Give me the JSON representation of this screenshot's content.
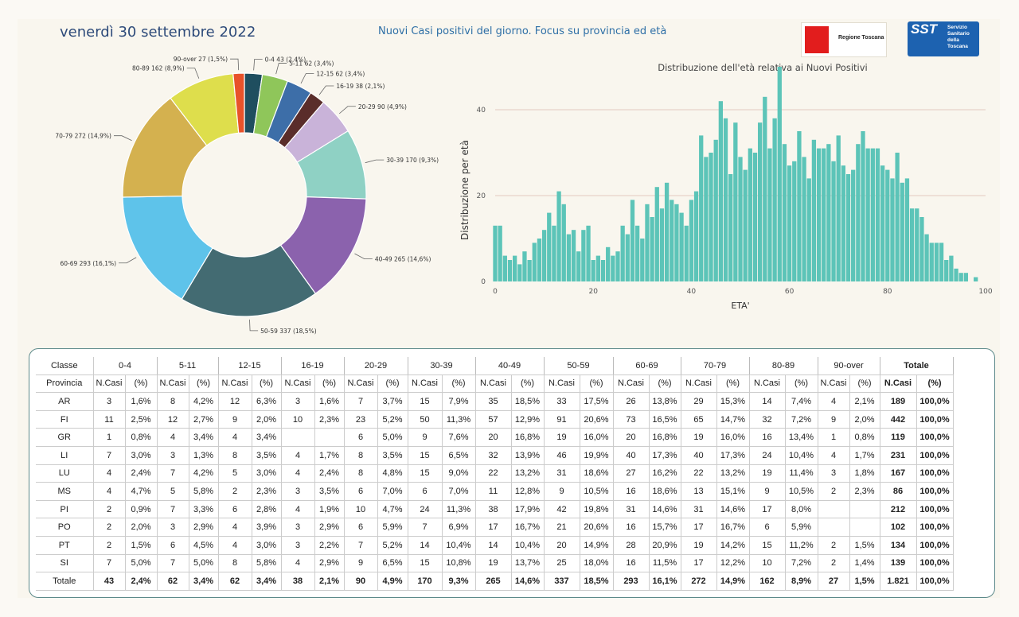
{
  "header": {
    "date": "venerdì 30 settembre 2022",
    "title": "Nuovi Casi positivi del giorno. Focus su provincia ed età",
    "logo_rt_text": "Regione Toscana",
    "logo_sst_big": "SST",
    "logo_sst_small": "Servizio\nSanitario\ndella\nToscana"
  },
  "colors": {
    "accent": "#2e6fa6",
    "hist_bar": "#5cc4b8",
    "grid": "#e4c9c0"
  },
  "chart_data": [
    {
      "type": "pie",
      "labels": [
        "0-4",
        "5-11",
        "12-15",
        "16-19",
        "20-29",
        "30-39",
        "40-49",
        "50-59",
        "60-69",
        "70-79",
        "80-89",
        "90-over"
      ],
      "values": [
        43,
        62,
        62,
        38,
        90,
        170,
        265,
        337,
        293,
        272,
        162,
        27
      ],
      "data_labels": [
        "0-4 43 (2,4%)",
        "5-11 62 (3,4%)",
        "12-15 62 (3,4%)",
        "16-19 38 (2,1%)",
        "20-29 90 (4,9%)",
        "30-39 170 (9,3%)",
        "40-49 265 (14,6%)",
        "50-59 337 (18,5%)",
        "60-69 293 (16,1%)",
        "70-79 272 (14,9%)",
        "80-89 162 (8,9%)",
        "90-over 27 (1,5%)"
      ],
      "colors": [
        "#1f4e5f",
        "#8fc65a",
        "#3d6ea8",
        "#5a2d2a",
        "#c9b3d9",
        "#8fd1c4",
        "#8b62ad",
        "#436b72",
        "#5ec3ea",
        "#d4b14f",
        "#dede4c",
        "#e8522a"
      ]
    },
    {
      "type": "bar",
      "title": "Distribuzione dell'età relativa ai Nuovi Positivi",
      "xlabel": "ETA'",
      "ylabel": "Distribuzione per età",
      "xlim": [
        0,
        100
      ],
      "ylim": [
        0,
        50
      ],
      "xticks": [
        0,
        20,
        40,
        60,
        80,
        100
      ],
      "yticks": [
        0,
        20,
        40
      ],
      "grid": "horizontal",
      "x": [
        0,
        1,
        2,
        3,
        4,
        5,
        6,
        7,
        8,
        9,
        10,
        11,
        12,
        13,
        14,
        15,
        16,
        17,
        18,
        19,
        20,
        21,
        22,
        23,
        24,
        25,
        26,
        27,
        28,
        29,
        30,
        31,
        32,
        33,
        34,
        35,
        36,
        37,
        38,
        39,
        40,
        41,
        42,
        43,
        44,
        45,
        46,
        47,
        48,
        49,
        50,
        51,
        52,
        53,
        54,
        55,
        56,
        57,
        58,
        59,
        60,
        61,
        62,
        63,
        64,
        65,
        66,
        67,
        68,
        69,
        70,
        71,
        72,
        73,
        74,
        75,
        76,
        77,
        78,
        79,
        80,
        81,
        82,
        83,
        84,
        85,
        86,
        87,
        88,
        89,
        90,
        91,
        92,
        93,
        94,
        95,
        96,
        97,
        98,
        99,
        100
      ],
      "values": [
        13,
        13,
        6,
        5,
        6,
        4,
        7,
        5,
        9,
        10,
        12,
        16,
        13,
        21,
        18,
        11,
        12,
        7,
        12,
        13,
        5,
        6,
        5,
        8,
        6,
        7,
        13,
        11,
        19,
        13,
        10,
        18,
        15,
        22,
        17,
        23,
        19,
        18,
        16,
        13,
        19,
        21,
        34,
        29,
        30,
        33,
        42,
        38,
        25,
        37,
        29,
        26,
        31,
        30,
        37,
        43,
        31,
        38,
        50,
        32,
        27,
        28,
        35,
        29,
        24,
        33,
        31,
        31,
        32,
        28,
        34,
        27,
        25,
        26,
        32,
        35,
        31,
        31,
        31,
        27,
        26,
        24,
        30,
        23,
        24,
        17,
        17,
        15,
        11,
        9,
        9,
        9,
        5,
        6,
        3,
        2,
        2,
        0,
        1,
        0,
        0
      ]
    },
    {
      "type": "table",
      "headers_top": [
        "Classe",
        "0-4",
        "5-11",
        "12-15",
        "16-19",
        "20-29",
        "30-39",
        "40-49",
        "50-59",
        "60-69",
        "70-79",
        "80-89",
        "90-over",
        "Totale"
      ],
      "row_label_header": "Provincia",
      "sub_headers": [
        "N.Casi",
        "(%)"
      ],
      "rows": [
        {
          "prov": "AR",
          "cells": [
            "3",
            "1,6%",
            "8",
            "4,2%",
            "12",
            "6,3%",
            "3",
            "1,6%",
            "7",
            "3,7%",
            "15",
            "7,9%",
            "35",
            "18,5%",
            "33",
            "17,5%",
            "26",
            "13,8%",
            "29",
            "15,3%",
            "14",
            "7,4%",
            "4",
            "2,1%",
            "189",
            "100,0%"
          ]
        },
        {
          "prov": "FI",
          "cells": [
            "11",
            "2,5%",
            "12",
            "2,7%",
            "9",
            "2,0%",
            "10",
            "2,3%",
            "23",
            "5,2%",
            "50",
            "11,3%",
            "57",
            "12,9%",
            "91",
            "20,6%",
            "73",
            "16,5%",
            "65",
            "14,7%",
            "32",
            "7,2%",
            "9",
            "2,0%",
            "442",
            "100,0%"
          ]
        },
        {
          "prov": "GR",
          "cells": [
            "1",
            "0,8%",
            "4",
            "3,4%",
            "4",
            "3,4%",
            "",
            "",
            "6",
            "5,0%",
            "9",
            "7,6%",
            "20",
            "16,8%",
            "19",
            "16,0%",
            "20",
            "16,8%",
            "19",
            "16,0%",
            "16",
            "13,4%",
            "1",
            "0,8%",
            "119",
            "100,0%"
          ]
        },
        {
          "prov": "LI",
          "cells": [
            "7",
            "3,0%",
            "3",
            "1,3%",
            "8",
            "3,5%",
            "4",
            "1,7%",
            "8",
            "3,5%",
            "15",
            "6,5%",
            "32",
            "13,9%",
            "46",
            "19,9%",
            "40",
            "17,3%",
            "40",
            "17,3%",
            "24",
            "10,4%",
            "4",
            "1,7%",
            "231",
            "100,0%"
          ]
        },
        {
          "prov": "LU",
          "cells": [
            "4",
            "2,4%",
            "7",
            "4,2%",
            "5",
            "3,0%",
            "4",
            "2,4%",
            "8",
            "4,8%",
            "15",
            "9,0%",
            "22",
            "13,2%",
            "31",
            "18,6%",
            "27",
            "16,2%",
            "22",
            "13,2%",
            "19",
            "11,4%",
            "3",
            "1,8%",
            "167",
            "100,0%"
          ]
        },
        {
          "prov": "MS",
          "cells": [
            "4",
            "4,7%",
            "5",
            "5,8%",
            "2",
            "2,3%",
            "3",
            "3,5%",
            "6",
            "7,0%",
            "6",
            "7,0%",
            "11",
            "12,8%",
            "9",
            "10,5%",
            "16",
            "18,6%",
            "13",
            "15,1%",
            "9",
            "10,5%",
            "2",
            "2,3%",
            "86",
            "100,0%"
          ]
        },
        {
          "prov": "PI",
          "cells": [
            "2",
            "0,9%",
            "7",
            "3,3%",
            "6",
            "2,8%",
            "4",
            "1,9%",
            "10",
            "4,7%",
            "24",
            "11,3%",
            "38",
            "17,9%",
            "42",
            "19,8%",
            "31",
            "14,6%",
            "31",
            "14,6%",
            "17",
            "8,0%",
            "",
            "",
            "212",
            "100,0%"
          ]
        },
        {
          "prov": "PO",
          "cells": [
            "2",
            "2,0%",
            "3",
            "2,9%",
            "4",
            "3,9%",
            "3",
            "2,9%",
            "6",
            "5,9%",
            "7",
            "6,9%",
            "17",
            "16,7%",
            "21",
            "20,6%",
            "16",
            "15,7%",
            "17",
            "16,7%",
            "6",
            "5,9%",
            "",
            "",
            "102",
            "100,0%"
          ]
        },
        {
          "prov": "PT",
          "cells": [
            "2",
            "1,5%",
            "6",
            "4,5%",
            "4",
            "3,0%",
            "3",
            "2,2%",
            "7",
            "5,2%",
            "14",
            "10,4%",
            "14",
            "10,4%",
            "20",
            "14,9%",
            "28",
            "20,9%",
            "19",
            "14,2%",
            "15",
            "11,2%",
            "2",
            "1,5%",
            "134",
            "100,0%"
          ]
        },
        {
          "prov": "SI",
          "cells": [
            "7",
            "5,0%",
            "7",
            "5,0%",
            "8",
            "5,8%",
            "4",
            "2,9%",
            "9",
            "6,5%",
            "15",
            "10,8%",
            "19",
            "13,7%",
            "25",
            "18,0%",
            "16",
            "11,5%",
            "17",
            "12,2%",
            "10",
            "7,2%",
            "2",
            "1,4%",
            "139",
            "100,0%"
          ]
        }
      ],
      "total_row": {
        "prov": "Totale",
        "cells": [
          "43",
          "2,4%",
          "62",
          "3,4%",
          "62",
          "3,4%",
          "38",
          "2,1%",
          "90",
          "4,9%",
          "170",
          "9,3%",
          "265",
          "14,6%",
          "337",
          "18,5%",
          "293",
          "16,1%",
          "272",
          "14,9%",
          "162",
          "8,9%",
          "27",
          "1,5%",
          "1.821",
          "100,0%"
        ]
      }
    }
  ]
}
